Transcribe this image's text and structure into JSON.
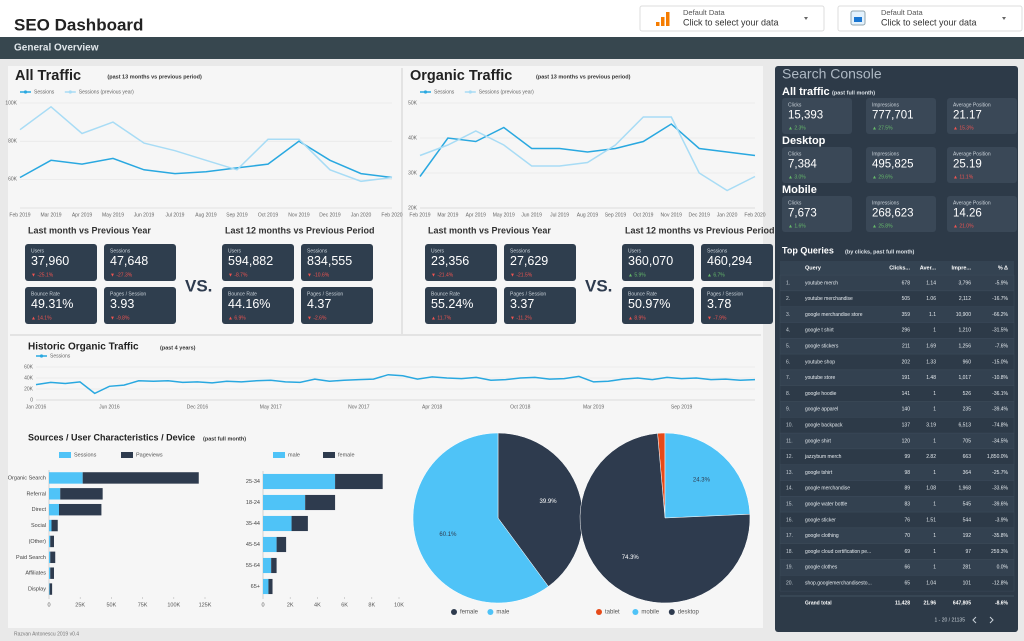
{
  "header": {
    "title": "SEO Dashboard",
    "sources": [
      {
        "label": "Default Data",
        "hint": "Click to select your data"
      },
      {
        "label": "Default Data",
        "hint": "Click to select your data"
      }
    ]
  },
  "section": "General Overview",
  "all_traffic": {
    "title": "All Traffic",
    "subtitle": "(past 13 months vs previous period)",
    "chart": {
      "type": "line",
      "categories": [
        "Feb 2019",
        "Mar 2019",
        "Apr 2019",
        "May 2019",
        "Jun 2019",
        "Jul 2019",
        "Aug 2019",
        "Sep 2019",
        "Oct 2019",
        "Nov 2019",
        "Dec 2019",
        "Jan 2020",
        "Feb 2020"
      ],
      "series": [
        {
          "name": "Sessions",
          "color": "#29a8e0",
          "values": [
            61000,
            70000,
            68000,
            71000,
            65000,
            63000,
            64000,
            66000,
            68000,
            80000,
            70000,
            63000,
            61000
          ]
        },
        {
          "name": "Sessions (previous year)",
          "color": "#a8dcf5",
          "values": [
            86000,
            98000,
            84000,
            90000,
            79000,
            75000,
            70000,
            65000,
            81000,
            81000,
            65000,
            59000,
            61000
          ]
        }
      ],
      "ylim": [
        45000,
        100000
      ],
      "yticks": [
        {
          "value": 60000,
          "label": "60K"
        },
        {
          "value": 80000,
          "label": "80K"
        },
        {
          "value": 100000,
          "label": "100K"
        }
      ],
      "grid": true
    },
    "vs": "VS.",
    "kpis": [
      {
        "title": "Last month vs Previous Year",
        "cards": [
          {
            "label": "Users",
            "value": "37,960",
            "change": "▼ -25.1%",
            "color": "#ef5350"
          },
          {
            "label": "Sessions",
            "value": "47,648",
            "change": "▼ -27.3%",
            "color": "#ef5350"
          },
          {
            "label": "Bounce Rate",
            "value": "49.31%",
            "change": "▲ 14.1%",
            "color": "#ef5350"
          },
          {
            "label": "Pages / Session",
            "value": "3.93",
            "change": "▼ -9.8%",
            "color": "#ef5350"
          }
        ]
      },
      {
        "title": "Last 12 months vs Previous Period",
        "cards": [
          {
            "label": "Users",
            "value": "594,882",
            "change": "▼ -8.7%",
            "color": "#ef5350"
          },
          {
            "label": "Sessions",
            "value": "834,555",
            "change": "▼ -10.6%",
            "color": "#ef5350"
          },
          {
            "label": "Bounce Rate",
            "value": "44.16%",
            "change": "▲ 6.9%",
            "color": "#ef5350"
          },
          {
            "label": "Pages / Session",
            "value": "4.37",
            "change": "▼ -2.6%",
            "color": "#ef5350"
          }
        ]
      }
    ]
  },
  "organic_traffic": {
    "title": "Organic Traffic",
    "subtitle": "(past 13 months vs previous period)",
    "chart": {
      "type": "line",
      "categories": [
        "Feb 2019",
        "Mar 2019",
        "Apr 2019",
        "May 2019",
        "Jun 2019",
        "Jul 2019",
        "Aug 2019",
        "Sep 2019",
        "Oct 2019",
        "Nov 2019",
        "Dec 2019",
        "Jan 2020",
        "Feb 2020"
      ],
      "series": [
        {
          "name": "Sessions",
          "color": "#29a8e0",
          "values": [
            29000,
            40000,
            39000,
            43000,
            37000,
            37000,
            36000,
            37000,
            39000,
            44000,
            37000,
            36000,
            35000
          ]
        },
        {
          "name": "Sessions (previous year)",
          "color": "#a8dcf5",
          "values": [
            35000,
            38000,
            42000,
            38000,
            32000,
            32000,
            33000,
            38000,
            46000,
            46000,
            30000,
            25000,
            29000
          ]
        }
      ],
      "ylim": [
        20000,
        50000
      ],
      "yticks": [
        {
          "value": 20000,
          "label": "20K"
        },
        {
          "value": 30000,
          "label": "30K"
        },
        {
          "value": 40000,
          "label": "40K"
        },
        {
          "value": 50000,
          "label": "50K"
        }
      ],
      "grid": true
    },
    "vs": "VS.",
    "kpis": [
      {
        "title": "Last month vs Previous Year",
        "cards": [
          {
            "label": "Users",
            "value": "23,356",
            "change": "▼ -21.4%",
            "color": "#ef5350"
          },
          {
            "label": "Sessions",
            "value": "27,629",
            "change": "▼ -21.5%",
            "color": "#ef5350"
          },
          {
            "label": "Bounce Rate",
            "value": "55.24%",
            "change": "▲ 11.7%",
            "color": "#ef5350"
          },
          {
            "label": "Pages / Session",
            "value": "3.37",
            "change": "▼ -11.2%",
            "color": "#ef5350"
          }
        ]
      },
      {
        "title": "Last 12 months vs Previous Period",
        "cards": [
          {
            "label": "Users",
            "value": "360,070",
            "change": "▲ 5.9%",
            "color": "#66bb6a"
          },
          {
            "label": "Sessions",
            "value": "460,294",
            "change": "▲ 6.7%",
            "color": "#66bb6a"
          },
          {
            "label": "Bounce Rate",
            "value": "50.97%",
            "change": "▲ 8.9%",
            "color": "#ef5350"
          },
          {
            "label": "Pages / Session",
            "value": "3.78",
            "change": "▼ -7.9%",
            "color": "#ef5350"
          }
        ]
      }
    ]
  },
  "historic": {
    "title": "Historic Organic Traffic",
    "subtitle": "(past 4 years)",
    "chart": {
      "type": "line",
      "categories": [
        "Jan 2016",
        null,
        null,
        null,
        null,
        "Jun 2016",
        null,
        null,
        null,
        null,
        null,
        "Dec 2016",
        null,
        null,
        null,
        null,
        "May 2017",
        null,
        null,
        null,
        null,
        null,
        "Nov 2017",
        null,
        null,
        null,
        null,
        "Apr 2018",
        null,
        null,
        null,
        null,
        null,
        "Oct 2018",
        null,
        null,
        null,
        null,
        "Mar 2019",
        null,
        null,
        null,
        null,
        null,
        "Sep 2019",
        null,
        null,
        null,
        null,
        null
      ],
      "series": [
        {
          "name": "Sessions",
          "color": "#29a8e0",
          "values": [
            28000,
            32000,
            30000,
            33000,
            12000,
            25000,
            27000,
            35000,
            34000,
            35000,
            32000,
            33000,
            31000,
            34000,
            33000,
            35000,
            36000,
            33000,
            32000,
            38000,
            34000,
            36000,
            37000,
            38000,
            46000,
            44000,
            38000,
            42000,
            40000,
            39000,
            41000,
            36000,
            37000,
            40000,
            41000,
            38000,
            39000,
            43000,
            33000,
            34000,
            38000,
            40000,
            37000,
            41000,
            39000,
            40000,
            37000,
            38000,
            36000,
            37000
          ]
        }
      ],
      "ylim": [
        0,
        60000
      ],
      "yticks": [
        0,
        {
          "value": 20000,
          "label": "20K"
        },
        {
          "value": 40000,
          "label": "40K"
        },
        {
          "value": 60000,
          "label": "60K"
        }
      ],
      "grid": true
    }
  },
  "sources": {
    "title": "Sources / User Characteristics / Device",
    "subtitle": "(past full month)",
    "charts": [
      {
        "type": "bar",
        "horizontal": true,
        "stacked": true,
        "categories": [
          "Organic Search",
          "Referral",
          "Direct",
          "Social",
          "(Other)",
          "Paid Search",
          "Affiliates",
          "Display"
        ],
        "series": [
          {
            "name": "Sessions",
            "color": "#4fc3f7",
            "values": [
              27000,
              9000,
              8000,
              2000,
              1000,
              1000,
              1000,
              500
            ]
          },
          {
            "name": "Pageviews",
            "color": "#2e3b4e",
            "values": [
              93000,
              34000,
              34000,
              5000,
              3000,
              4000,
              3000,
              2000
            ]
          }
        ],
        "xlim": [
          0,
          125000
        ],
        "xticks": [
          0,
          {
            "value": 25000,
            "label": "25K"
          },
          {
            "value": 50000,
            "label": "50K"
          },
          {
            "value": 75000,
            "label": "75K"
          },
          {
            "value": 100000,
            "label": "100K"
          },
          {
            "value": 125000,
            "label": "125K"
          }
        ]
      },
      {
        "type": "bar",
        "horizontal": true,
        "stacked": true,
        "categories": [
          "25-34",
          "18-24",
          "35-44",
          "45-54",
          "55-64",
          "65+"
        ],
        "series": [
          {
            "name": "male",
            "color": "#4fc3f7",
            "values": [
              5300,
              3100,
              2100,
              1000,
              600,
              400
            ]
          },
          {
            "name": "female",
            "color": "#2e3b4e",
            "values": [
              3500,
              2200,
              1200,
              700,
              400,
              300
            ]
          }
        ],
        "xlim": [
          0,
          10000
        ],
        "xticks": [
          0,
          {
            "value": 2000,
            "label": "2K"
          },
          {
            "value": 4000,
            "label": "4K"
          },
          {
            "value": 6000,
            "label": "6K"
          },
          {
            "value": 8000,
            "label": "8K"
          },
          {
            "value": 10000,
            "label": "10K"
          }
        ]
      },
      {
        "type": "pie",
        "categories": [
          "female",
          "male"
        ],
        "values": [
          39.9,
          60.1
        ],
        "value_labels": [
          "39.9%",
          "60.1%"
        ],
        "colors": [
          "#2e3b4e",
          "#4fc3f7"
        ]
      },
      {
        "type": "pie",
        "categories": [
          "tablet",
          "mobile",
          "desktop"
        ],
        "values": [
          1.4,
          24.3,
          74.3
        ],
        "value_labels": [
          null,
          "24.3%",
          "74.3%"
        ],
        "colors": [
          "#e64a19",
          "#4fc3f7",
          "#2e3b4e"
        ]
      }
    ]
  },
  "search_console": {
    "title": "Search Console",
    "groups": [
      {
        "title": "All traffic",
        "subtitle": "(past full month)",
        "cards": [
          {
            "label": "Clicks",
            "value": "15,393",
            "change": "▲ 2.3%",
            "color": "#66bb6a"
          },
          {
            "label": "Impressions",
            "value": "777,701",
            "change": "▲ 27.5%",
            "color": "#66bb6a"
          },
          {
            "label": "Average Position",
            "value": "21.17",
            "change": "▲ 15.3%",
            "color": "#ef5350"
          }
        ]
      },
      {
        "title": "Desktop",
        "cards": [
          {
            "label": "Clicks",
            "value": "7,384",
            "change": "▲ 3.0%",
            "color": "#66bb6a"
          },
          {
            "label": "Impressions",
            "value": "495,825",
            "change": "▲ 29.6%",
            "color": "#66bb6a"
          },
          {
            "label": "Average Position",
            "value": "25.19",
            "change": "▲ 11.1%",
            "color": "#ef5350"
          }
        ]
      },
      {
        "title": "Mobile",
        "cards": [
          {
            "label": "Clicks",
            "value": "7,673",
            "change": "▲ 1.6%",
            "color": "#66bb6a"
          },
          {
            "label": "Impressions",
            "value": "268,623",
            "change": "▲ 25.8%",
            "color": "#66bb6a"
          },
          {
            "label": "Average Position",
            "value": "14.26",
            "change": "▲ 21.0%",
            "color": "#ef5350"
          }
        ]
      }
    ],
    "queries": {
      "title": "Top Queries",
      "subtitle": "(by clicks, past full month)",
      "columns": [
        "Query",
        "Clicks...",
        "Aver...",
        "Impre...",
        "% Δ"
      ],
      "rows": [
        [
          "1.",
          "youtube merch",
          "678",
          "1.14",
          "3,796",
          "-5.9%"
        ],
        [
          "2.",
          "youtube merchandise",
          "505",
          "1.06",
          "2,112",
          "-16.7%"
        ],
        [
          "3.",
          "google merchandise store",
          "359",
          "1.1",
          "10,900",
          "-66.2%"
        ],
        [
          "4.",
          "google t shirt",
          "296",
          "1",
          "1,210",
          "-31.5%"
        ],
        [
          "5.",
          "google stickers",
          "211",
          "1.69",
          "1,256",
          "-7.6%"
        ],
        [
          "6.",
          "youtube shop",
          "202",
          "1.33",
          "960",
          "-15.0%"
        ],
        [
          "7.",
          "youtube store",
          "191",
          "1.48",
          "1,017",
          "-10.8%"
        ],
        [
          "8.",
          "google hoodie",
          "141",
          "1",
          "526",
          "-36.1%"
        ],
        [
          "9.",
          "google apparel",
          "140",
          "1",
          "235",
          "-39.4%"
        ],
        [
          "10.",
          "google backpack",
          "137",
          "3.19",
          "6,513",
          "-74.8%"
        ],
        [
          "11.",
          "google shirt",
          "120",
          "1",
          "705",
          "-34.5%"
        ],
        [
          "12.",
          "jazzybum merch",
          "99",
          "2.82",
          "663",
          "1,850.0%"
        ],
        [
          "13.",
          "google tshirt",
          "98",
          "1",
          "364",
          "-25.7%"
        ],
        [
          "14.",
          "google merchandise",
          "89",
          "1.08",
          "1,968",
          "-33.6%"
        ],
        [
          "15.",
          "google water bottle",
          "83",
          "1",
          "545",
          "-39.6%"
        ],
        [
          "16.",
          "google sticker",
          "76",
          "1.51",
          "544",
          "-3.9%"
        ],
        [
          "17.",
          "google clothing",
          "70",
          "1",
          "192",
          "-35.8%"
        ],
        [
          "18.",
          "google cloud certification pe...",
          "69",
          "1",
          "97",
          "259.3%"
        ],
        [
          "19.",
          "google clothes",
          "66",
          "1",
          "281",
          "0.0%"
        ],
        [
          "20.",
          "shop.googlemerchandisesto...",
          "65",
          "1.04",
          "101",
          "-12.8%"
        ]
      ],
      "total": [
        "Grand total",
        "11,428",
        "21.96",
        "647,805",
        "-8.6%"
      ],
      "pagination": "1 - 20 / 21135"
    }
  },
  "footer": "Razvan Antonescu 2019 v0.4"
}
